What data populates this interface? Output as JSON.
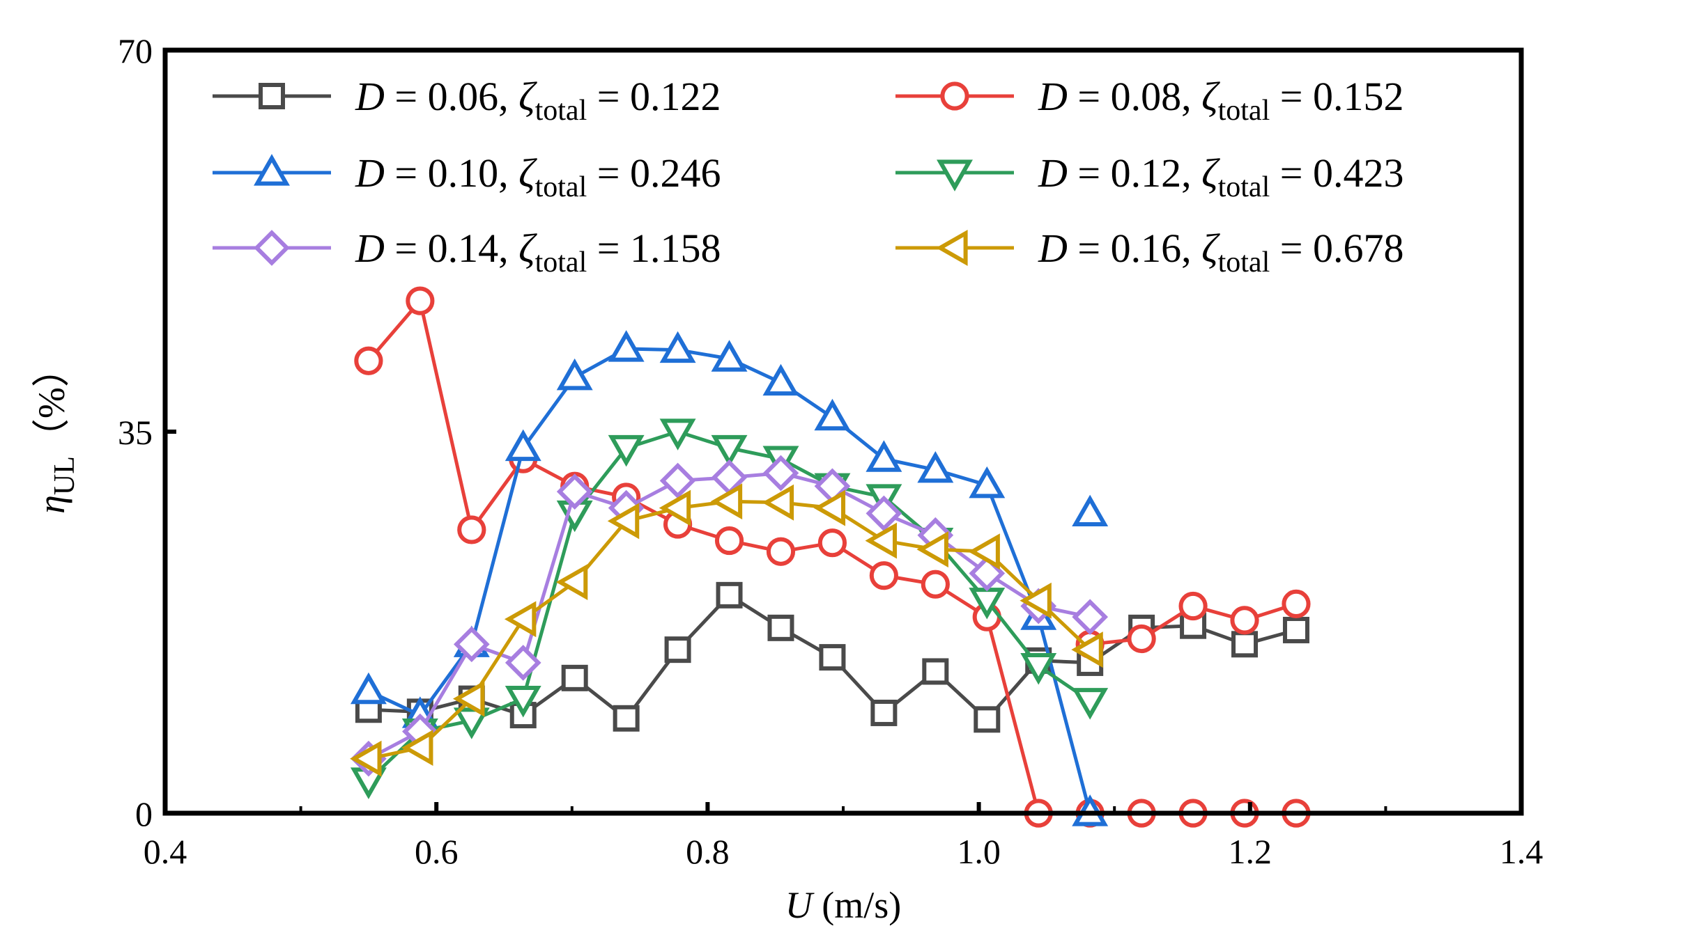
{
  "chart_data": {
    "type": "line",
    "xlabel": {
      "var": "U",
      "unit": " (m/s)"
    },
    "ylabel": {
      "var": "η",
      "sub": "UL",
      "unit": "（%）"
    },
    "xlim": [
      0.4,
      1.4
    ],
    "ylim": [
      0,
      70
    ],
    "xticks": [
      0.4,
      0.6,
      0.8,
      1.0,
      1.2,
      1.4
    ],
    "xtick_labels": [
      "0.4",
      "0.6",
      "0.8",
      "1.0",
      "1.2",
      "1.4"
    ],
    "yticks": [
      0,
      35,
      70
    ],
    "ytick_labels": [
      "0",
      "35",
      "70"
    ],
    "grid": false,
    "legend_position": "top",
    "series": [
      {
        "name": "D = 0.06, ζtotal = 0.122",
        "D": "0.06",
        "zeta": "0.122",
        "color": "#4a4a4a",
        "marker": "square",
        "x": [
          0.55,
          0.588,
          0.626,
          0.664,
          0.702,
          0.74,
          0.778,
          0.816,
          0.854,
          0.892,
          0.93,
          0.968,
          1.006,
          1.044,
          1.082,
          1.12,
          1.158,
          1.196,
          1.234
        ],
        "y": [
          9.5,
          9.3,
          10.5,
          9.0,
          12.4,
          8.7,
          15.0,
          20.0,
          17.0,
          14.3,
          9.2,
          13.0,
          8.6,
          14.0,
          13.8,
          17.0,
          17.2,
          15.5,
          16.8
        ]
      },
      {
        "name": "D = 0.08, ζtotal = 0.152",
        "D": "0.08",
        "zeta": "0.152",
        "color": "#e8403a",
        "marker": "circle",
        "x": [
          0.55,
          0.588,
          0.626,
          0.664,
          0.702,
          0.74,
          0.778,
          0.816,
          0.854,
          0.892,
          0.93,
          0.968,
          1.006,
          1.044,
          1.082,
          1.12,
          1.158,
          1.196,
          1.234
        ],
        "y": [
          41.5,
          47.0,
          26.0,
          32.5,
          30.0,
          29.0,
          26.5,
          25.0,
          24.0,
          24.8,
          21.8,
          21.0,
          18.0,
          0.0,
          0.0,
          0.0,
          0.0,
          0.0,
          0.0
        ],
        "extra_points": {
          "x": [
            1.082,
            1.12,
            1.158,
            1.196,
            1.234
          ],
          "y": [
            15.5,
            16.0,
            19.0,
            17.7,
            19.2
          ]
        }
      },
      {
        "name": "D = 0.10, ζtotal = 0.246",
        "D": "0.10",
        "zeta": "0.246",
        "color": "#1f6fd6",
        "marker": "triangle-up",
        "x": [
          0.55,
          0.588,
          0.626,
          0.664,
          0.702,
          0.74,
          0.778,
          0.816,
          0.854,
          0.892,
          0.93,
          0.968,
          1.006,
          1.044,
          1.082
        ],
        "y": [
          11.2,
          9.0,
          15.5,
          33.5,
          40.0,
          42.6,
          42.5,
          41.7,
          39.5,
          36.3,
          32.5,
          31.5,
          30.1,
          18.0,
          0.0
        ],
        "extra_points": {
          "x": [
            1.082
          ],
          "y": [
            27.5
          ]
        }
      },
      {
        "name": "D = 0.12, ζtotal = 0.423",
        "D": "0.12",
        "zeta": "0.423",
        "color": "#2e9c5a",
        "marker": "triangle-down",
        "x": [
          0.55,
          0.588,
          0.626,
          0.664,
          0.702,
          0.74,
          0.778,
          0.816,
          0.854,
          0.892,
          0.93,
          0.968,
          1.006,
          1.044,
          1.082
        ],
        "y": [
          3.0,
          7.5,
          8.5,
          10.5,
          27.5,
          33.5,
          35.0,
          33.5,
          32.5,
          30.0,
          29.0,
          25.0,
          19.5,
          13.5,
          10.3
        ]
      },
      {
        "name": "D = 0.14, ζtotal = 1.158",
        "D": "0.14",
        "zeta": "1.158",
        "color": "#a77ee0",
        "marker": "diamond",
        "x": [
          0.55,
          0.588,
          0.626,
          0.664,
          0.702,
          0.74,
          0.778,
          0.816,
          0.854,
          0.892,
          0.93,
          0.968,
          1.006,
          1.044,
          1.082
        ],
        "y": [
          5.0,
          7.5,
          15.5,
          13.8,
          29.5,
          28.0,
          30.5,
          30.8,
          31.2,
          30.0,
          27.5,
          25.5,
          22.0,
          19.0,
          18.0
        ]
      },
      {
        "name": "D = 0.16, ζtotal = 0.678",
        "D": "0.16",
        "zeta": "0.678",
        "color": "#cc9a06",
        "marker": "triangle-left",
        "x": [
          0.55,
          0.588,
          0.626,
          0.664,
          0.702,
          0.74,
          0.778,
          0.816,
          0.854,
          0.892,
          0.93,
          0.968,
          1.006,
          1.044,
          1.082
        ],
        "y": [
          5.0,
          6.0,
          10.5,
          17.8,
          21.2,
          26.8,
          28.0,
          28.6,
          28.5,
          28.0,
          25.0,
          24.2,
          24.0,
          19.5,
          15.0
        ]
      }
    ]
  }
}
